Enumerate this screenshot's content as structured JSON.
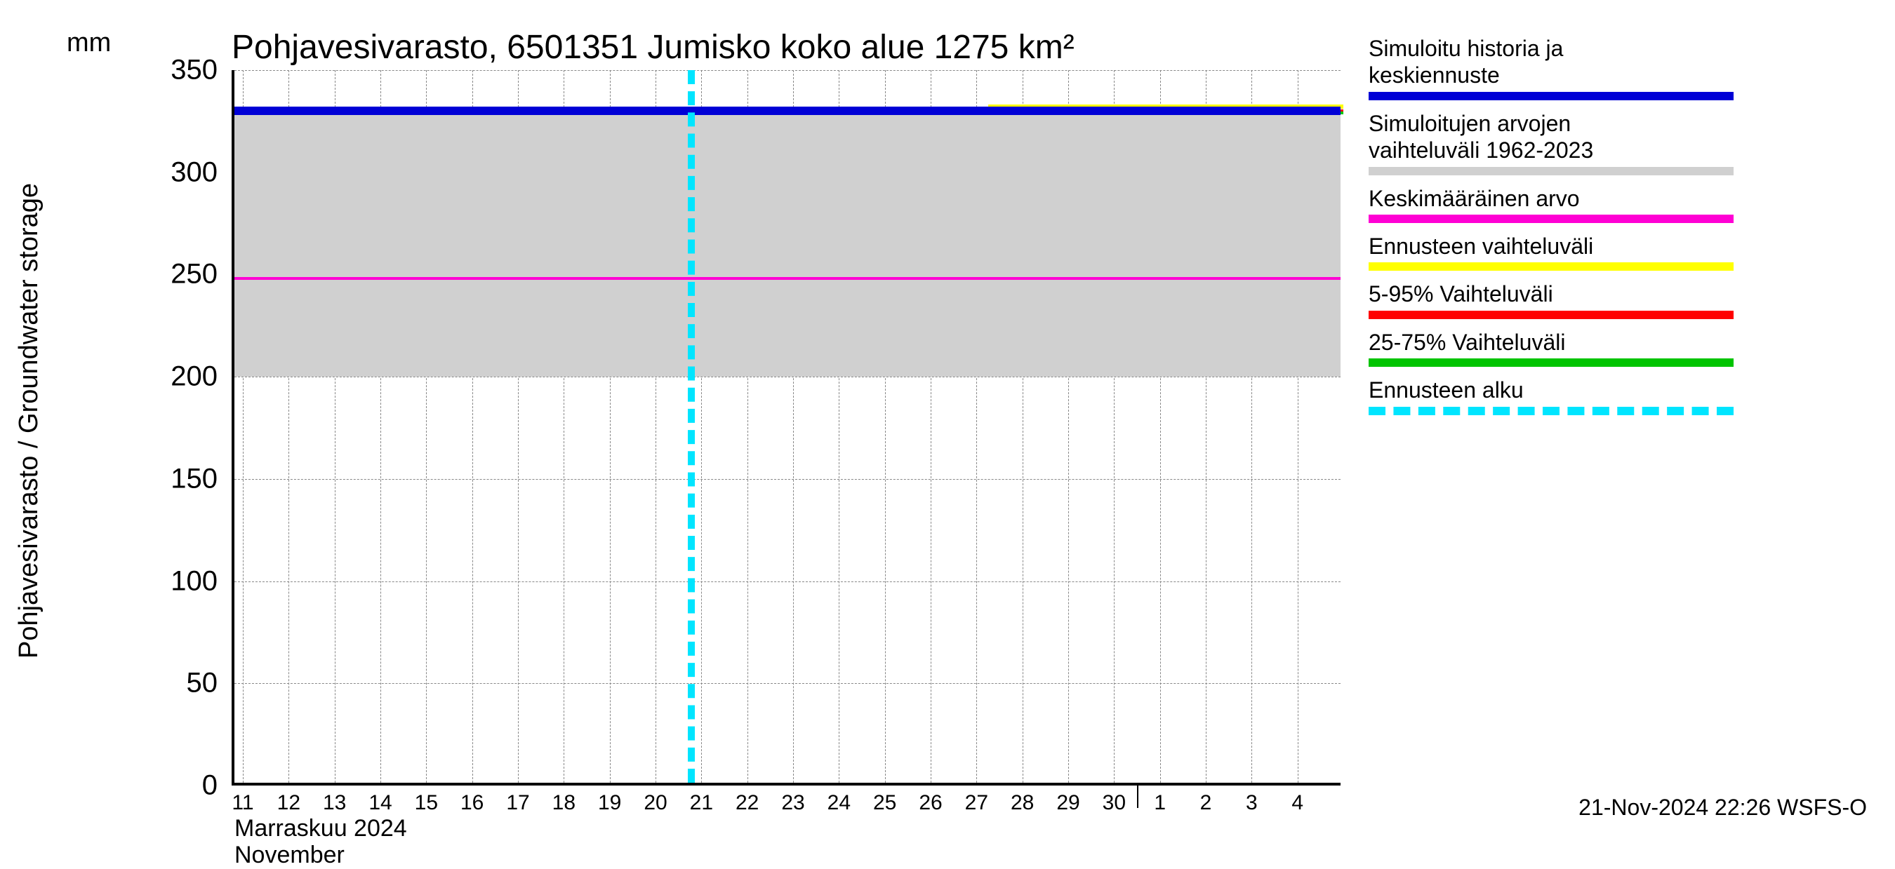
{
  "chart": {
    "type": "line",
    "title": "Pohjavesivarasto, 6501351 Jumisko koko alue 1275 km²",
    "y_axis_label": "Pohjavesivarasto / Groundwater storage",
    "y_unit": "mm",
    "ylim": [
      0,
      350
    ],
    "yticks": [
      0,
      50,
      100,
      150,
      200,
      250,
      300,
      350
    ],
    "xticks": [
      "11",
      "12",
      "13",
      "14",
      "15",
      "16",
      "17",
      "18",
      "19",
      "20",
      "21",
      "22",
      "23",
      "24",
      "25",
      "26",
      "27",
      "28",
      "29",
      "30",
      "1",
      "2",
      "3",
      "4"
    ],
    "x_month_major_divider_after_index": 19,
    "month_label_1": "Marraskuu 2024",
    "month_label_2": "November",
    "forecast_start_xindex": 9.7,
    "gray_band": {
      "min": 200,
      "max": 332
    },
    "series": {
      "sim_history_forecast": {
        "y": 330,
        "color": "#0000d6",
        "width": 12
      },
      "mean_value": {
        "y": 248,
        "color": "#ff00d4",
        "width": 4
      },
      "forecast_range_yellow": {
        "y_from_x": 0.68,
        "y": 332,
        "color": "#ffff00",
        "width": 6
      },
      "range_5_95_red": {
        "y_from_x": 0.68,
        "y": 330,
        "color": "#ff0000",
        "width": 4
      },
      "range_25_75_green": {
        "y_from_x": 0.68,
        "y": 329,
        "color": "#00c400",
        "width": 4
      }
    },
    "background_color": "#ffffff",
    "grid_color": "#888888",
    "axis_color": "#000000",
    "title_fontsize": 48,
    "label_fontsize": 38,
    "tick_fontsize": 40,
    "xtick_fontsize": 30
  },
  "legend": {
    "entries": [
      {
        "text1": "Simuloitu historia ja",
        "text2": "keskiennuste",
        "color": "#0000d6",
        "style": "solid"
      },
      {
        "text1": "Simuloitujen arvojen",
        "text2": "vaihteluväli 1962-2023",
        "color": "#d0d0d0",
        "style": "solid"
      },
      {
        "text1": "Keskimääräinen arvo",
        "text2": "",
        "color": "#ff00d4",
        "style": "solid"
      },
      {
        "text1": "Ennusteen vaihteluväli",
        "text2": "",
        "color": "#ffff00",
        "style": "solid"
      },
      {
        "text1": "5-95% Vaihteluväli",
        "text2": "",
        "color": "#ff0000",
        "style": "solid"
      },
      {
        "text1": "25-75% Vaihteluväli",
        "text2": "",
        "color": "#00c400",
        "style": "solid"
      },
      {
        "text1": "Ennusteen alku",
        "text2": "",
        "color": "#00e5ff",
        "style": "dashed"
      }
    ]
  },
  "timestamp": "21-Nov-2024 22:26 WSFS-O"
}
